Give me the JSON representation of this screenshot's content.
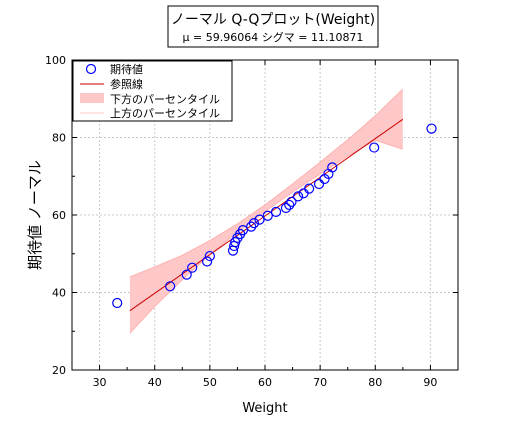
{
  "chart_data": {
    "type": "scatter",
    "title": "ノーマル Q-Qプロット(Weight)",
    "subtitle": "μ = 59.96064  シグマ = 11.10871",
    "xlabel": "Weight",
    "ylabel": "期待値 ノーマル",
    "xlim": [
      25,
      95
    ],
    "ylim": [
      20,
      100
    ],
    "xticks": [
      30,
      40,
      50,
      60,
      70,
      80,
      90
    ],
    "yticks": [
      20,
      40,
      60,
      80,
      100
    ],
    "grid": true,
    "legend_position": "top-left",
    "legend": [
      "期待値",
      "参照線",
      "下方のパーセンタイル",
      "上方のパーセンタイル"
    ],
    "series": [
      {
        "name": "期待値",
        "kind": "points",
        "color": "#0000ff",
        "x": [
          33.2,
          42.8,
          45.8,
          46.8,
          49.5,
          50.0,
          54.2,
          54.4,
          54.6,
          55.0,
          55.5,
          56.0,
          57.5,
          58.0,
          59.0,
          60.5,
          62.0,
          63.8,
          64.4,
          64.8,
          66.0,
          67.0,
          68.0,
          69.8,
          70.8,
          71.5,
          72.2,
          79.8,
          90.2
        ],
        "y": [
          37.3,
          41.6,
          44.6,
          46.4,
          48.0,
          49.4,
          50.8,
          52.0,
          53.0,
          54.1,
          55.1,
          56.1,
          57.0,
          57.9,
          58.8,
          59.8,
          60.8,
          61.8,
          62.6,
          63.4,
          64.8,
          65.6,
          66.8,
          68.0,
          69.3,
          70.6,
          72.3,
          77.4,
          82.3
        ]
      },
      {
        "name": "参照線",
        "kind": "line",
        "color": "#cc0000",
        "x": [
          35.5,
          85.0
        ],
        "y": [
          35.3,
          84.7
        ]
      },
      {
        "name": "下方のパーセンタイル",
        "kind": "band-lower",
        "color": "#ffc8c8",
        "x": [
          35.5,
          40,
          45,
          50,
          55,
          60,
          65,
          70,
          75,
          80,
          85
        ],
        "y": [
          29.5,
          36.4,
          43.3,
          49.8,
          55.6,
          60.9,
          65.9,
          70.6,
          75.2,
          79.3,
          77.0
        ]
      },
      {
        "name": "上方のパーセンタイル",
        "kind": "band-upper",
        "color": "#ffc8c8",
        "x": [
          35.5,
          40,
          45,
          50,
          55,
          60,
          65,
          70,
          75,
          80,
          85
        ],
        "y": [
          44.0,
          46.6,
          49.6,
          53.4,
          57.7,
          62.6,
          68.0,
          73.6,
          79.4,
          85.6,
          92.5
        ]
      }
    ]
  }
}
